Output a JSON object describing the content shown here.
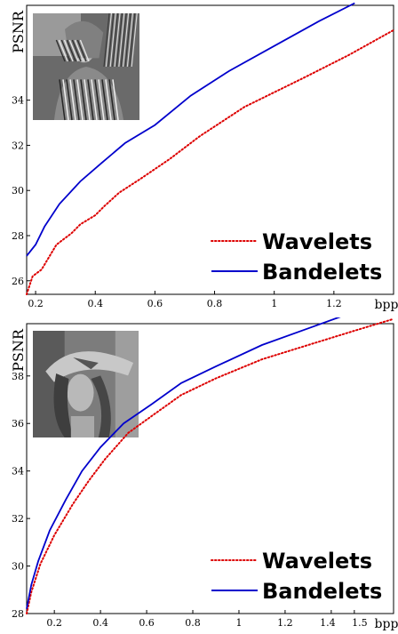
{
  "chart_data": [
    {
      "type": "line",
      "image_subject": "barbara",
      "xlabel": "bpp",
      "ylabel": "PSNR",
      "xlim": [
        0.17,
        1.4
      ],
      "ylim": [
        25.4,
        38.2
      ],
      "x_ticks": [
        0.2,
        0.4,
        0.6,
        0.8,
        1,
        1.2
      ],
      "x_tick_labels": [
        "0.2",
        "0.4",
        "0.6",
        "0.8",
        "1",
        "1.2"
      ],
      "y_ticks": [
        26,
        28,
        30,
        32,
        34
      ],
      "y_tick_labels": [
        "26",
        "28",
        "30",
        "32",
        "34"
      ],
      "legend_position": "bottom-right",
      "grid": false,
      "series": [
        {
          "name": "Wavelets",
          "color": "#dd0000",
          "style": "dotted",
          "x": [
            0.17,
            0.19,
            0.22,
            0.27,
            0.32,
            0.35,
            0.4,
            0.43,
            0.48,
            0.55,
            0.65,
            0.75,
            0.9,
            1.1,
            1.25,
            1.4
          ],
          "y": [
            25.4,
            26.2,
            26.5,
            27.6,
            28.1,
            28.5,
            28.9,
            29.3,
            29.9,
            30.5,
            31.4,
            32.4,
            33.7,
            35.0,
            36.0,
            37.1
          ]
        },
        {
          "name": "Bandelets",
          "color": "#0000cc",
          "style": "solid",
          "x": [
            0.17,
            0.2,
            0.23,
            0.28,
            0.35,
            0.42,
            0.5,
            0.6,
            0.72,
            0.85,
            1.0,
            1.15,
            1.27
          ],
          "y": [
            27.1,
            27.6,
            28.4,
            29.4,
            30.4,
            31.2,
            32.1,
            32.9,
            34.2,
            35.3,
            36.4,
            37.5,
            38.3
          ]
        }
      ]
    },
    {
      "type": "line",
      "image_subject": "lena",
      "xlabel": "bpp",
      "ylabel": "PSNR",
      "xlim": [
        0.08,
        1.67
      ],
      "ylim": [
        28.0,
        40.2
      ],
      "x_ticks": [
        0.2,
        0.4,
        0.6,
        0.8,
        1,
        1.2,
        1.4,
        1.5
      ],
      "x_tick_labels": [
        "0.2",
        "0.4",
        "0.6",
        "0.8",
        "1",
        "1.2",
        "1.4",
        "1.5"
      ],
      "y_ticks": [
        28,
        30,
        32,
        34,
        36,
        38
      ],
      "y_tick_labels": [
        "28",
        "30",
        "32",
        "34",
        "36",
        "38"
      ],
      "legend_position": "bottom-right",
      "grid": false,
      "series": [
        {
          "name": "Wavelets",
          "color": "#dd0000",
          "style": "dotted",
          "x": [
            0.08,
            0.1,
            0.14,
            0.2,
            0.28,
            0.35,
            0.42,
            0.52,
            0.62,
            0.75,
            0.9,
            1.1,
            1.3,
            1.5,
            1.67
          ],
          "y": [
            28.0,
            28.9,
            30.1,
            31.3,
            32.6,
            33.6,
            34.5,
            35.6,
            36.3,
            37.2,
            37.9,
            38.7,
            39.3,
            39.9,
            40.4
          ]
        },
        {
          "name": "Bandelets",
          "color": "#0000cc",
          "style": "solid",
          "x": [
            0.08,
            0.1,
            0.13,
            0.18,
            0.25,
            0.32,
            0.4,
            0.5,
            0.62,
            0.75,
            0.9,
            1.1,
            1.3,
            1.5,
            1.62
          ],
          "y": [
            28.2,
            29.2,
            30.2,
            31.5,
            32.8,
            34.0,
            35.0,
            36.0,
            36.8,
            37.7,
            38.4,
            39.3,
            40.0,
            40.7,
            41.1
          ]
        }
      ]
    }
  ]
}
